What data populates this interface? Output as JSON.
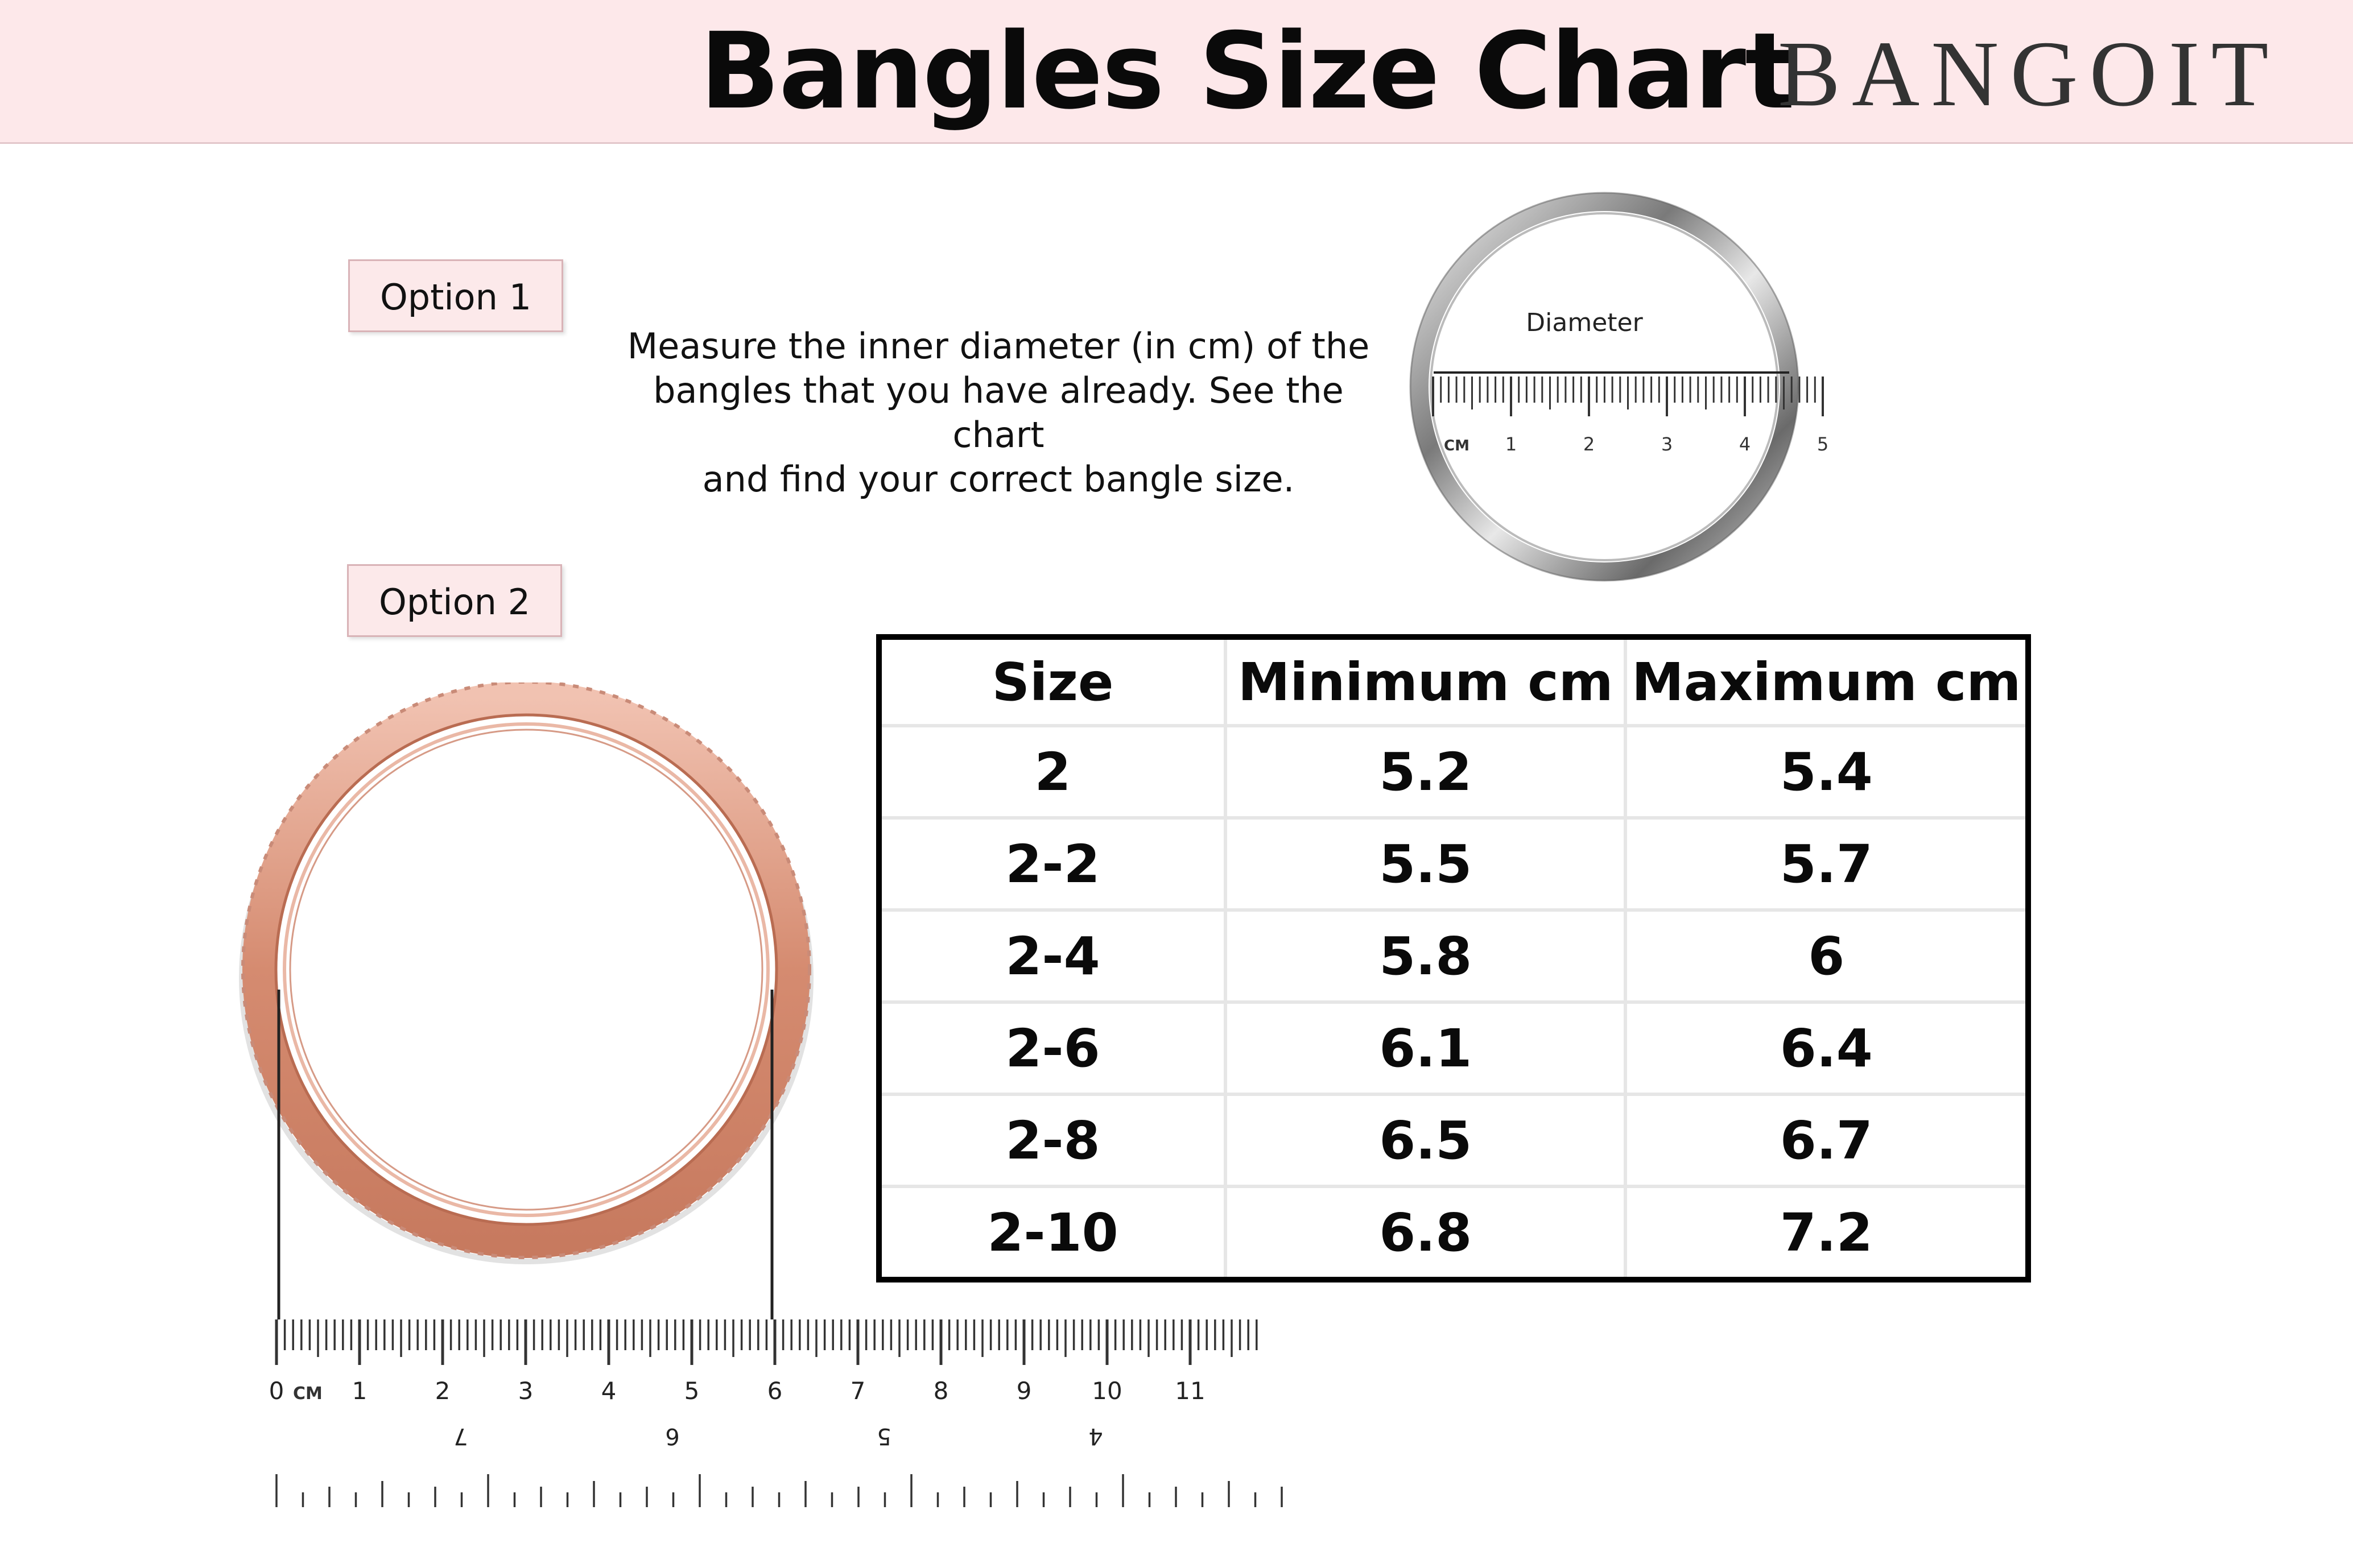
{
  "header": {
    "title": "Bangles Size Chart",
    "brand": "BANGOIT"
  },
  "option1": {
    "label": "Option 1",
    "instructions": [
      "Measure the inner diameter (in cm) of the",
      "bangles that you have already. See the chart",
      "and find your correct bangle size."
    ]
  },
  "diameter_figure": {
    "label": "Diameter",
    "unit": "CM",
    "ticks": [
      "1",
      "2",
      "3",
      "4",
      "5"
    ]
  },
  "option2": {
    "label": "Option 2"
  },
  "ruler": {
    "unit": "CM",
    "cm_ticks": [
      "0",
      "1",
      "2",
      "3",
      "4",
      "5",
      "6",
      "7",
      "8",
      "9",
      "10",
      "11"
    ],
    "inch_ticks": [
      "7",
      "6",
      "5",
      "4"
    ]
  },
  "size_table": {
    "headers": [
      "Size",
      "Minimum cm",
      "Maximum cm"
    ],
    "rows": [
      [
        "2",
        "5.2",
        "5.4"
      ],
      [
        "2-2",
        "5.5",
        "5.7"
      ],
      [
        "2-4",
        "5.8",
        "6"
      ],
      [
        "2-6",
        "6.1",
        "6.4"
      ],
      [
        "2-8",
        "6.5",
        "6.7"
      ],
      [
        "2-10",
        "6.8",
        "7.2"
      ]
    ]
  },
  "colors": {
    "header_bg": "#fde8ea",
    "label_bg": "#fce9ea",
    "rose_gold": "#d98d73",
    "silver": "#9a9a9a"
  }
}
